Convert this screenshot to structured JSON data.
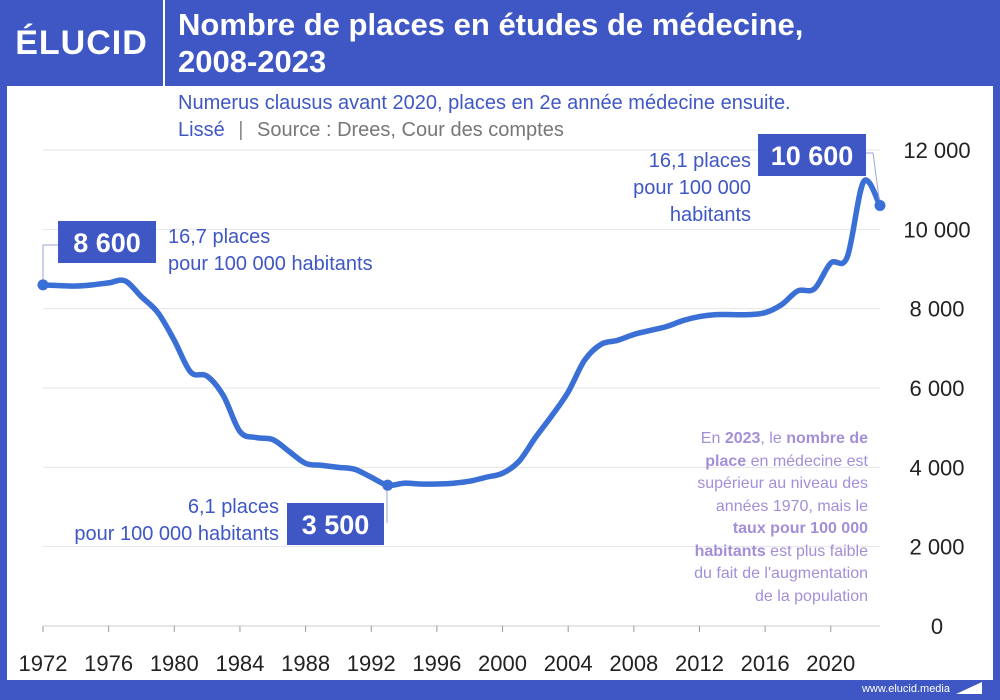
{
  "brand": {
    "logo_text": "ÉLUCID",
    "footer_url": "www.elucid.media",
    "colors": {
      "primary": "#3f57c4",
      "line": "#3a6fd6",
      "note": "#a28fd8"
    }
  },
  "header": {
    "title_line1": "Nombre de places en études de médecine,",
    "title_line2": "2008-2023",
    "subtitle": "Numerus clausus avant 2020, places en 2e année médecine ensuite.",
    "subtitle_smoothing": "Lissé",
    "subtitle_separator": "|",
    "subtitle_source": "Source : Drees, Cour des comptes"
  },
  "chart_data": {
    "type": "line",
    "title": "Nombre de places en études de médecine, 2008-2023",
    "xlabel": "",
    "ylabel": "",
    "ylim": [
      0,
      12000
    ],
    "y_ticks": [
      0,
      2000,
      4000,
      6000,
      8000,
      10000,
      12000
    ],
    "y_tick_labels": [
      "0",
      "2 000",
      "4 000",
      "6 000",
      "8 000",
      "10 000",
      "12 000"
    ],
    "x_ticks": [
      1972,
      1976,
      1980,
      1984,
      1988,
      1992,
      1996,
      2000,
      2004,
      2008,
      2012,
      2016,
      2020
    ],
    "x_tick_labels": [
      "1972",
      "1976",
      "1980",
      "1984",
      "1988",
      "1992",
      "1996",
      "2000",
      "2004",
      "2008",
      "2012",
      "2016",
      "2020"
    ],
    "xlim": [
      1972,
      2023
    ],
    "grid": true,
    "y_axis_position": "right",
    "x": [
      1972,
      1973,
      1974,
      1975,
      1976,
      1977,
      1978,
      1979,
      1980,
      1981,
      1982,
      1983,
      1984,
      1985,
      1986,
      1987,
      1988,
      1989,
      1990,
      1991,
      1992,
      1993,
      1994,
      1995,
      1996,
      1997,
      1998,
      1999,
      2000,
      2001,
      2002,
      2003,
      2004,
      2005,
      2006,
      2007,
      2008,
      2009,
      2010,
      2011,
      2012,
      2013,
      2014,
      2015,
      2016,
      2017,
      2018,
      2019,
      2020,
      2021,
      2022,
      2023
    ],
    "series": [
      {
        "values": [
          8600,
          8580,
          8570,
          8600,
          8650,
          8700,
          8300,
          7900,
          7200,
          6400,
          6300,
          5800,
          4900,
          4750,
          4700,
          4400,
          4100,
          4050,
          4000,
          3950,
          3750,
          3550,
          3600,
          3580,
          3580,
          3600,
          3650,
          3750,
          3850,
          4150,
          4750,
          5300,
          5900,
          6700,
          7100,
          7200,
          7350,
          7450,
          7550,
          7700,
          7800,
          7850,
          7850,
          7850,
          7900,
          8100,
          8450,
          8500,
          9150,
          9300,
          11200,
          10600
        ]
      }
    ],
    "annotations": [
      {
        "badge": "8 600",
        "text_lines": [
          "16,7 places",
          "pour 100 000 habitants"
        ]
      },
      {
        "badge": "3 500",
        "text_lines": [
          "6,1 places",
          "pour 100 000 habitants"
        ]
      },
      {
        "badge": "10 600",
        "text_lines": [
          "16,1 places",
          "pour 100 000",
          "habitants"
        ]
      }
    ],
    "note": {
      "lines": [
        [
          [
            "En ",
            false
          ],
          [
            "2023",
            true
          ],
          [
            ", le ",
            false
          ],
          [
            "nombre de",
            true
          ]
        ],
        [
          [
            "place",
            true
          ],
          [
            " en médecine est",
            false
          ]
        ],
        [
          [
            "supérieur au niveau des",
            false
          ]
        ],
        [
          [
            "années 1970, mais le",
            false
          ]
        ],
        [
          [
            "taux pour 100 000",
            true
          ]
        ],
        [
          [
            "habitants",
            true
          ],
          [
            " est plus faible",
            false
          ]
        ],
        [
          [
            "du fait de l'augmentation",
            false
          ]
        ],
        [
          [
            "de la population",
            false
          ]
        ]
      ]
    }
  }
}
